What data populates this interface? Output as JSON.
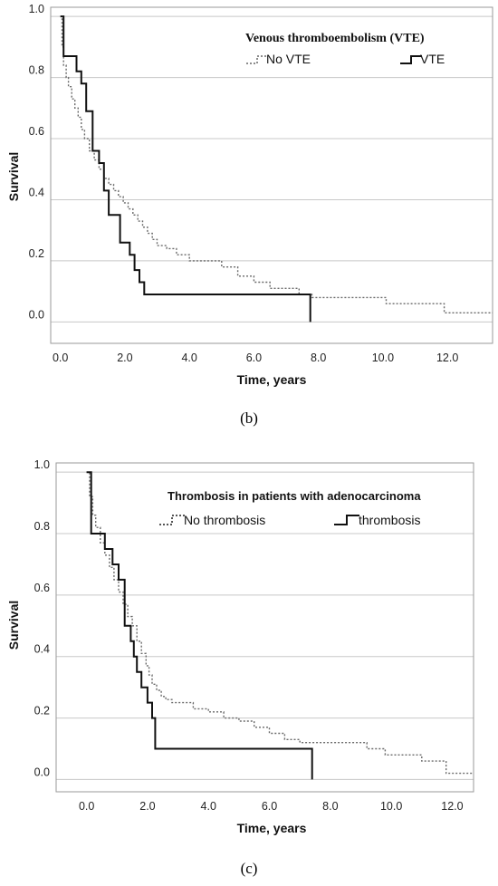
{
  "chart_data": [
    {
      "type": "line",
      "panel_label": "(b)",
      "xlabel": "Time, years",
      "ylabel": "Survival",
      "xlim": [
        -0.3,
        13.4
      ],
      "ylim": [
        -0.07,
        1.03
      ],
      "x_ticks": [
        "0.0",
        "2.0",
        "4.0",
        "6.0",
        "8.0",
        "10.0",
        "12.0"
      ],
      "y_ticks": [
        "0.0",
        "0.2",
        "0.4",
        "0.6",
        "0.8",
        "1.0"
      ],
      "grid": "horizontal",
      "legend": {
        "title": "Venous thromboembolism (VTE)",
        "position": "top-right",
        "entries": [
          "No VTE",
          "VTE"
        ]
      },
      "series": [
        {
          "name": "No VTE",
          "style": "dotted",
          "x": [
            0,
            0.05,
            0.1,
            0.18,
            0.25,
            0.35,
            0.45,
            0.55,
            0.65,
            0.75,
            0.9,
            1.05,
            1.2,
            1.35,
            1.5,
            1.65,
            1.8,
            1.95,
            2.1,
            2.25,
            2.4,
            2.55,
            2.7,
            2.85,
            3.0,
            3.3,
            3.6,
            4.0,
            4.4,
            5.0,
            5.5,
            6.0,
            6.5,
            7.4,
            7.8,
            10.1,
            11.9,
            13.4
          ],
          "y": [
            1.0,
            0.9,
            0.84,
            0.8,
            0.77,
            0.73,
            0.7,
            0.67,
            0.63,
            0.6,
            0.56,
            0.53,
            0.5,
            0.47,
            0.45,
            0.43,
            0.41,
            0.39,
            0.37,
            0.35,
            0.33,
            0.31,
            0.29,
            0.27,
            0.25,
            0.24,
            0.22,
            0.2,
            0.2,
            0.18,
            0.15,
            0.13,
            0.11,
            0.09,
            0.08,
            0.06,
            0.03,
            0.03
          ]
        },
        {
          "name": "VTE",
          "style": "solid",
          "x": [
            0,
            0.1,
            0.5,
            0.65,
            0.8,
            1.0,
            1.2,
            1.35,
            1.5,
            1.85,
            2.15,
            2.3,
            2.45,
            2.6,
            7.75
          ],
          "y": [
            1.0,
            0.87,
            0.82,
            0.78,
            0.69,
            0.56,
            0.52,
            0.43,
            0.35,
            0.26,
            0.22,
            0.17,
            0.13,
            0.09,
            0.0
          ]
        }
      ]
    },
    {
      "type": "line",
      "panel_label": "(c)",
      "xlabel": "Time, years",
      "ylabel": "Survival",
      "xlim": [
        -1.0,
        12.7
      ],
      "ylim": [
        -0.04,
        1.03
      ],
      "x_ticks": [
        "0.0",
        "2.0",
        "4.0",
        "6.0",
        "8.0",
        "10.0",
        "12.0"
      ],
      "y_ticks": [
        "0.0",
        "0.2",
        "0.4",
        "0.6",
        "0.8",
        "1.0"
      ],
      "grid": "horizontal",
      "legend": {
        "title": "Thrombosis in patients with adenocarcinoma",
        "position": "top-right",
        "entries": [
          "No thrombosis",
          "thrombosis"
        ]
      },
      "series": [
        {
          "name": "No thrombosis",
          "style": "dotted",
          "x": [
            0,
            0.1,
            0.2,
            0.3,
            0.45,
            0.6,
            0.75,
            0.9,
            1.05,
            1.2,
            1.35,
            1.5,
            1.65,
            1.8,
            1.95,
            2.05,
            2.15,
            2.3,
            2.45,
            2.6,
            2.8,
            3.0,
            3.5,
            4.0,
            4.5,
            5.0,
            5.5,
            6.0,
            6.5,
            7.0,
            9.2,
            9.8,
            11.0,
            11.8,
            12.7
          ],
          "y": [
            1.0,
            0.92,
            0.86,
            0.82,
            0.77,
            0.73,
            0.69,
            0.65,
            0.61,
            0.57,
            0.53,
            0.5,
            0.45,
            0.41,
            0.37,
            0.34,
            0.31,
            0.29,
            0.27,
            0.26,
            0.25,
            0.25,
            0.23,
            0.22,
            0.2,
            0.19,
            0.17,
            0.15,
            0.13,
            0.12,
            0.1,
            0.08,
            0.06,
            0.02,
            0.02
          ]
        },
        {
          "name": "thrombosis",
          "style": "solid",
          "x": [
            0,
            0.15,
            0.6,
            0.85,
            1.05,
            1.25,
            1.45,
            1.55,
            1.65,
            1.8,
            2.0,
            2.15,
            2.25,
            7.4
          ],
          "y": [
            1.0,
            0.8,
            0.75,
            0.7,
            0.65,
            0.5,
            0.45,
            0.4,
            0.35,
            0.3,
            0.25,
            0.2,
            0.1,
            0.0
          ]
        }
      ]
    }
  ]
}
